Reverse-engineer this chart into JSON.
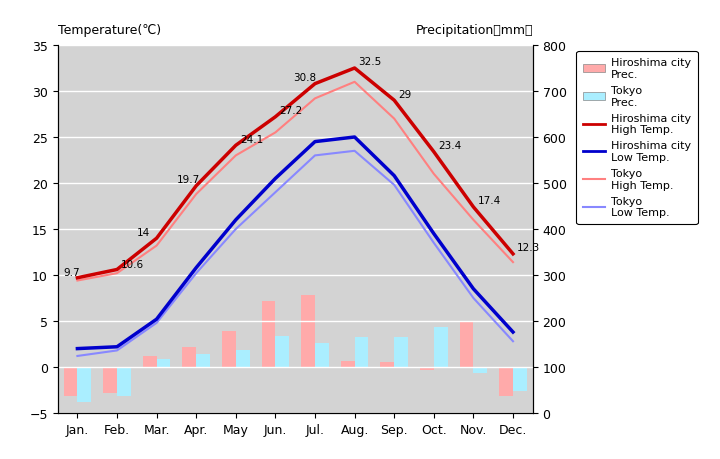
{
  "months": [
    "Jan.",
    "Feb.",
    "Mar.",
    "Apr.",
    "May",
    "Jun.",
    "Jul.",
    "Aug.",
    "Sep.",
    "Oct.",
    "Nov.",
    "Dec."
  ],
  "hiroshima_high": [
    9.7,
    10.6,
    14.0,
    19.7,
    24.1,
    27.2,
    30.8,
    32.5,
    29.0,
    23.4,
    17.4,
    12.3
  ],
  "hiroshima_low": [
    2.0,
    2.2,
    5.2,
    10.8,
    16.0,
    20.5,
    24.5,
    25.0,
    20.8,
    14.5,
    8.5,
    3.8
  ],
  "tokyo_high": [
    9.4,
    10.2,
    13.2,
    18.8,
    23.0,
    25.5,
    29.2,
    31.0,
    27.0,
    21.0,
    16.0,
    11.4
  ],
  "tokyo_low": [
    1.2,
    1.8,
    4.8,
    10.2,
    15.0,
    19.0,
    23.0,
    23.5,
    19.8,
    13.5,
    7.5,
    2.8
  ],
  "hiroshima_prec_temp": [
    -3.2,
    -2.8,
    1.2,
    2.2,
    3.9,
    7.2,
    7.8,
    0.7,
    0.5,
    -0.3,
    4.9,
    -3.1
  ],
  "tokyo_prec_temp": [
    -3.8,
    -3.2,
    0.9,
    1.4,
    1.9,
    3.4,
    2.6,
    3.3,
    3.3,
    4.4,
    -0.6,
    -2.6
  ],
  "temp_ylim": [
    -5,
    35
  ],
  "prec_ylim": [
    0,
    800
  ],
  "background_color": "#d3d3d3",
  "hiroshima_high_color": "#cc0000",
  "hiroshima_low_color": "#0000cc",
  "tokyo_high_color": "#ff8080",
  "tokyo_low_color": "#8888ff",
  "hiroshima_prec_color": "#ffaaaa",
  "tokyo_prec_color": "#aaeeff",
  "grid_color": "#ffffff",
  "title_left": "Temperature(℃)",
  "title_right": "Precipitation（mm）",
  "hiroshima_high_labels": [
    "9.7",
    "10.6",
    "14",
    "19.7",
    "24.1",
    "27.2",
    "30.8",
    "32.5",
    "29",
    "23.4",
    "17.4",
    "12.3"
  ]
}
